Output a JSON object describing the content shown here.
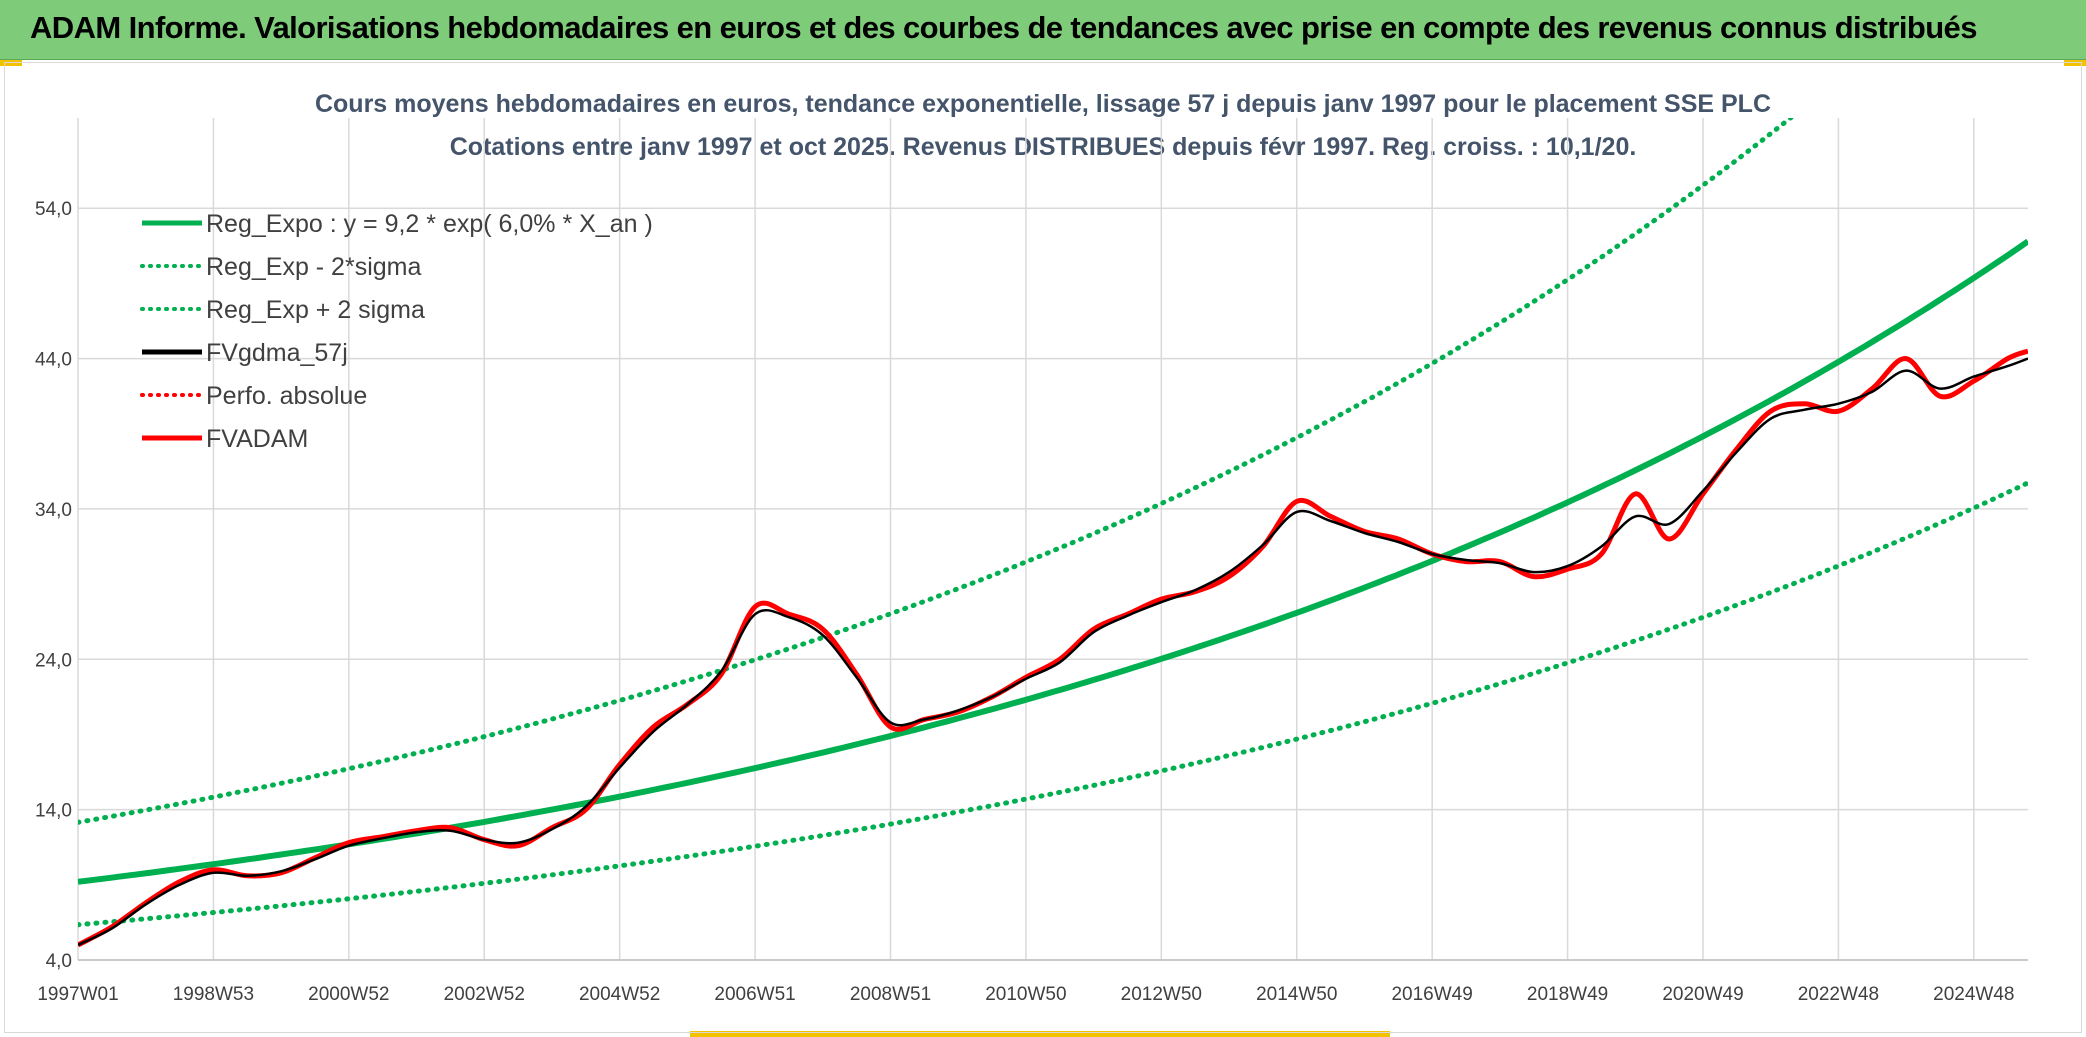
{
  "banner": {
    "title": "ADAM Informe. Valorisations hebdomadaires en euros et des courbes de tendances avec prise en compte des revenus connus distribués"
  },
  "colors": {
    "banner_bg": "#7ecb7a",
    "trend_green": "#00b050",
    "price_red": "#ff0000",
    "smooth_black": "#000000",
    "grid": "#d9d9d9"
  },
  "chart_data": {
    "type": "line",
    "title_line1": "Cours moyens hebdomadaires en euros, tendance exponentielle, lissage 57 j depuis janv 1997 pour le placement SSE PLC",
    "title_line2": "Cotations entre janv 1997 et oct 2025. Revenus DISTRIBUES depuis févr 1997. Reg. croiss. : 10,1/20.",
    "y_ticks": [
      "54,0",
      "44,0",
      "34,0",
      "24,0",
      "14,0",
      "4,0"
    ],
    "y_tick_values": [
      54,
      44,
      34,
      24,
      14,
      4
    ],
    "ylim": [
      4,
      60
    ],
    "xlim": [
      1997.0,
      2025.8
    ],
    "x_tick_labels": [
      "1997W01",
      "1998W53",
      "2000W52",
      "2002W52",
      "2004W52",
      "2006W51",
      "2008W51",
      "2010W50",
      "2012W50",
      "2014W50",
      "2016W49",
      "2018W49",
      "2020W49",
      "2022W48",
      "2024W48"
    ],
    "x_tick_years": [
      1997.0,
      1999.0,
      2001.0,
      2003.0,
      2005.0,
      2007.0,
      2009.0,
      2011.0,
      2013.0,
      2015.0,
      2017.0,
      2019.0,
      2021.0,
      2023.0,
      2025.0
    ],
    "legend": [
      {
        "label": "Reg_Expo : y = 9,2 * exp( 6,0% *  X_an )",
        "style": "solid",
        "color": "#00b050"
      },
      {
        "label": "Reg_Exp - 2*sigma",
        "style": "dotted",
        "color": "#00b050"
      },
      {
        "label": "Reg_Exp + 2 sigma",
        "style": "dotted",
        "color": "#00b050"
      },
      {
        "label": "FVgdma_57j",
        "style": "solid",
        "color": "#000000"
      },
      {
        "label": "Perfo. absolue",
        "style": "dotted",
        "color": "#ff0000"
      },
      {
        "label": "FVADAM",
        "style": "solid",
        "color": "#ff0000"
      }
    ],
    "regression": {
      "a": 9.2,
      "rate": 0.06,
      "base_year": 1997.0,
      "lower_factor": 0.69,
      "upper_factor": 1.43
    },
    "series": [
      {
        "name": "FVADAM",
        "x": [
          1997.0,
          1997.5,
          1998.0,
          1998.5,
          1999.0,
          1999.5,
          2000.0,
          2000.5,
          2001.0,
          2001.5,
          2002.0,
          2002.5,
          2003.0,
          2003.5,
          2004.0,
          2004.5,
          2005.0,
          2005.5,
          2006.0,
          2006.5,
          2007.0,
          2007.5,
          2008.0,
          2008.5,
          2009.0,
          2009.5,
          2010.0,
          2010.5,
          2011.0,
          2011.5,
          2012.0,
          2012.5,
          2013.0,
          2013.5,
          2014.0,
          2014.5,
          2015.0,
          2015.5,
          2016.0,
          2016.5,
          2017.0,
          2017.5,
          2018.0,
          2018.5,
          2019.0,
          2019.5,
          2020.0,
          2020.5,
          2021.0,
          2021.5,
          2022.0,
          2022.5,
          2023.0,
          2023.5,
          2024.0,
          2024.5,
          2025.0,
          2025.5,
          2025.8
        ],
        "values": [
          5.0,
          6.2,
          7.8,
          9.2,
          10.0,
          9.6,
          9.8,
          10.8,
          11.8,
          12.2,
          12.6,
          12.8,
          12.0,
          11.6,
          12.8,
          14.0,
          17.0,
          19.5,
          21.0,
          23.0,
          27.5,
          27.0,
          26.0,
          23.0,
          19.5,
          20.0,
          20.5,
          21.5,
          22.8,
          24.0,
          26.0,
          27.0,
          28.0,
          28.5,
          29.5,
          31.5,
          34.5,
          33.5,
          32.5,
          32.0,
          31.0,
          30.5,
          30.5,
          29.5,
          30.0,
          31.0,
          35.0,
          32.0,
          35.0,
          38.0,
          40.5,
          41.0,
          40.5,
          42.0,
          44.0,
          41.5,
          42.5,
          44.0,
          44.5
        ]
      },
      {
        "name": "FVgdma_57j",
        "x": [
          1997.0,
          1997.5,
          1998.0,
          1998.5,
          1999.0,
          1999.5,
          2000.0,
          2000.5,
          2001.0,
          2001.5,
          2002.0,
          2002.5,
          2003.0,
          2003.5,
          2004.0,
          2004.5,
          2005.0,
          2005.5,
          2006.0,
          2006.5,
          2007.0,
          2007.5,
          2008.0,
          2008.5,
          2009.0,
          2009.5,
          2010.0,
          2010.5,
          2011.0,
          2011.5,
          2012.0,
          2012.5,
          2013.0,
          2013.5,
          2014.0,
          2014.5,
          2015.0,
          2015.5,
          2016.0,
          2016.5,
          2017.0,
          2017.5,
          2018.0,
          2018.5,
          2019.0,
          2019.5,
          2020.0,
          2020.5,
          2021.0,
          2021.5,
          2022.0,
          2022.5,
          2023.0,
          2023.5,
          2024.0,
          2024.5,
          2025.0,
          2025.5,
          2025.8
        ],
        "values": [
          5.0,
          6.1,
          7.7,
          9.0,
          9.8,
          9.6,
          9.9,
          10.7,
          11.6,
          12.1,
          12.5,
          12.6,
          12.0,
          11.8,
          12.7,
          14.2,
          16.8,
          19.2,
          21.0,
          23.2,
          27.0,
          26.8,
          25.6,
          22.8,
          19.8,
          20.0,
          20.6,
          21.5,
          22.7,
          23.8,
          25.8,
          26.9,
          27.8,
          28.6,
          29.8,
          31.6,
          33.8,
          33.2,
          32.4,
          31.8,
          31.0,
          30.6,
          30.4,
          29.8,
          30.2,
          31.5,
          33.5,
          33.0,
          35.2,
          37.8,
          40.0,
          40.6,
          41.0,
          41.8,
          43.2,
          42.0,
          42.8,
          43.5,
          44.0
        ]
      }
    ]
  }
}
